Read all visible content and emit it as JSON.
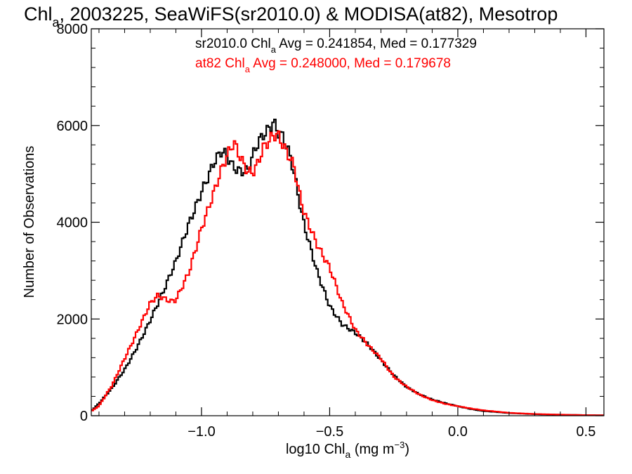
{
  "chart_data": {
    "type": "line",
    "title": {
      "main": "Chl",
      "sub": "a",
      "rest": ", 2003225, SeaWiFS(sr2010.0) & MODISA(at82), Mesotrop"
    },
    "xlabel": {
      "prefix": "log10 Chl",
      "sub": "a",
      "mid": " (mg m",
      "sup": "−3",
      "end": ")"
    },
    "ylabel": "Number of Observations",
    "xlim": [
      -1.43,
      0.57
    ],
    "ylim": [
      0,
      8000
    ],
    "x_ticks": [
      {
        "value": -1.0,
        "label": "−1.0"
      },
      {
        "value": -0.5,
        "label": "−0.5"
      },
      {
        "value": 0.0,
        "label": "0.0"
      },
      {
        "value": 0.5,
        "label": "0.5"
      }
    ],
    "y_ticks": [
      {
        "value": 0,
        "label": "0"
      },
      {
        "value": 2000,
        "label": "2000"
      },
      {
        "value": 4000,
        "label": "4000"
      },
      {
        "value": 6000,
        "label": "6000"
      },
      {
        "value": 8000,
        "label": "8000"
      }
    ],
    "legend": {
      "placement": "top",
      "entries": [
        {
          "pre": "sr2010.0 Chl",
          "sub": "a",
          "post": " Avg = 0.241854, Med = 0.177329",
          "color": "#000000"
        },
        {
          "pre": "at82 Chl",
          "sub": "a",
          "post": " Avg = 0.248000, Med = 0.179678",
          "color": "#ff0000"
        }
      ]
    },
    "series": [
      {
        "color": "#000000",
        "x": [
          -1.43,
          -1.4,
          -1.35,
          -1.3,
          -1.25,
          -1.2,
          -1.15,
          -1.1,
          -1.05,
          -1.0,
          -0.95,
          -0.92,
          -0.9,
          -0.88,
          -0.86,
          -0.84,
          -0.82,
          -0.8,
          -0.78,
          -0.76,
          -0.74,
          -0.72,
          -0.7,
          -0.68,
          -0.66,
          -0.64,
          -0.62,
          -0.6,
          -0.55,
          -0.5,
          -0.45,
          -0.4,
          -0.35,
          -0.3,
          -0.25,
          -0.2,
          -0.15,
          -0.1,
          -0.05,
          0.0,
          0.05,
          0.1,
          0.2,
          0.3,
          0.4,
          0.5,
          0.57
        ],
        "y": [
          100,
          250,
          560,
          960,
          1450,
          1980,
          2520,
          3150,
          3980,
          4700,
          5280,
          5450,
          5300,
          5100,
          5000,
          5000,
          5050,
          5400,
          5700,
          5880,
          6000,
          6150,
          5900,
          5750,
          5420,
          5000,
          4400,
          3900,
          3000,
          2300,
          1900,
          1700,
          1450,
          1150,
          850,
          600,
          440,
          330,
          260,
          200,
          140,
          95,
          55,
          32,
          20,
          12,
          10
        ]
      },
      {
        "color": "#ff0000",
        "x": [
          -1.43,
          -1.4,
          -1.35,
          -1.3,
          -1.25,
          -1.2,
          -1.17,
          -1.15,
          -1.12,
          -1.1,
          -1.05,
          -1.0,
          -0.95,
          -0.92,
          -0.9,
          -0.88,
          -0.87,
          -0.85,
          -0.82,
          -0.8,
          -0.78,
          -0.76,
          -0.74,
          -0.72,
          -0.7,
          -0.68,
          -0.66,
          -0.64,
          -0.62,
          -0.6,
          -0.55,
          -0.5,
          -0.45,
          -0.4,
          -0.35,
          -0.3,
          -0.25,
          -0.2,
          -0.15,
          -0.1,
          -0.05,
          0.0,
          0.05,
          0.1,
          0.2,
          0.3,
          0.4,
          0.5,
          0.57
        ],
        "y": [
          90,
          200,
          620,
          1200,
          1750,
          2300,
          2450,
          2400,
          2350,
          2400,
          3000,
          3900,
          4600,
          5050,
          5300,
          5550,
          5580,
          5350,
          5100,
          5100,
          5300,
          5600,
          5700,
          5800,
          5750,
          5500,
          5300,
          5100,
          4600,
          4200,
          3600,
          3100,
          2300,
          1750,
          1450,
          1200,
          820,
          600,
          430,
          320,
          250,
          200,
          150,
          110,
          60,
          35,
          22,
          12,
          10
        ]
      }
    ]
  }
}
